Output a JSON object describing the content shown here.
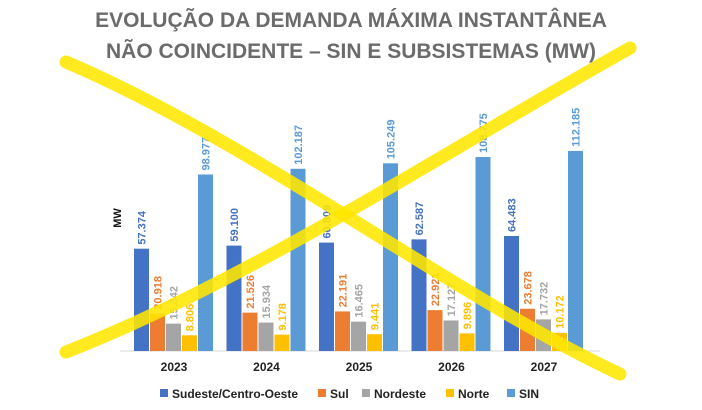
{
  "chart_data": {
    "type": "bar",
    "title_line1": "EVOLUÇÃO DA DEMANDA MÁXIMA INSTANTÂNEA",
    "title_line2": "NÃO COINCIDENTE – SIN E SUBSISTEMAS (MW)",
    "ylabel": "MW",
    "xlabel": "",
    "categories": [
      "2023",
      "2024",
      "2025",
      "2026",
      "2027"
    ],
    "ylim": [
      0,
      120000
    ],
    "grid": false,
    "legend_position": "bottom",
    "series": [
      {
        "name": "Sudeste/Centro-Oeste",
        "color": "#4472c4",
        "values": [
          57374,
          59100,
          60809,
          62587,
          64483
        ],
        "labels": [
          "57.374",
          "59.100",
          "60.809",
          "62.587",
          "64.483"
        ]
      },
      {
        "name": "Sul",
        "color": "#ed7d31",
        "values": [
          20918,
          21526,
          22191,
          22921,
          23678
        ],
        "labels": [
          "20.918",
          "21.526",
          "22.191",
          "22.921",
          "23.678"
        ]
      },
      {
        "name": "Nordeste",
        "color": "#a5a5a5",
        "values": [
          15342,
          15934,
          16465,
          17127,
          17732
        ],
        "labels": [
          "15.342",
          "15.934",
          "16.465",
          "17.127",
          "17.732"
        ]
      },
      {
        "name": "Norte",
        "color": "#ffc000",
        "values": [
          8806,
          9178,
          9441,
          9896,
          10172
        ],
        "labels": [
          "8.806",
          "9.178",
          "9.441",
          "9.896",
          "10.172"
        ]
      },
      {
        "name": "SIN",
        "color": "#5b9bd5",
        "values": [
          98977,
          102187,
          105249,
          108775,
          112185
        ],
        "labels": [
          "98.977",
          "102.187",
          "105.249",
          "108.775",
          "112.185"
        ]
      }
    ],
    "annotation": {
      "type": "cross-out",
      "color": "#ffe600"
    }
  }
}
